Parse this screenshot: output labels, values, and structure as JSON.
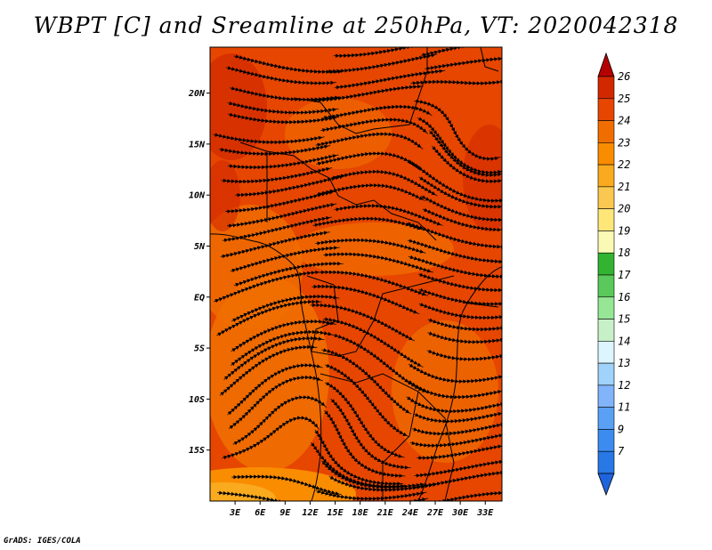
{
  "title": "WBPT [C] and Sreamline at 250hPa, VT: 2020042318",
  "credit": "GrADS: IGES/COLA",
  "map": {
    "lat_ticks": [
      "20N",
      "15N",
      "10N",
      "5N",
      "EQ",
      "5S",
      "10S",
      "15S"
    ],
    "lon_ticks": [
      "3E",
      "6E",
      "9E",
      "12E",
      "15E",
      "18E",
      "21E",
      "24E",
      "27E",
      "30E",
      "33E"
    ],
    "lat_range": [
      -20,
      24.5
    ],
    "lon_range": [
      0,
      35
    ]
  },
  "colorbar": {
    "labels": [
      "7",
      "9",
      "11",
      "12",
      "13",
      "14",
      "15",
      "16",
      "17",
      "18",
      "19",
      "20",
      "21",
      "22",
      "23",
      "24",
      "25",
      "26"
    ],
    "colors": [
      "#1e64dc",
      "#2878e6",
      "#3c8cf0",
      "#5aa0f5",
      "#82b4fa",
      "#a0d2fa",
      "#dcf5ff",
      "#c8f0c8",
      "#96e696",
      "#5ac85a",
      "#32b432",
      "#fafab4",
      "#ffe678",
      "#fac850",
      "#faaa1e",
      "#fa8c00",
      "#f06e00",
      "#e64600",
      "#d22800",
      "#b40000"
    ]
  }
}
